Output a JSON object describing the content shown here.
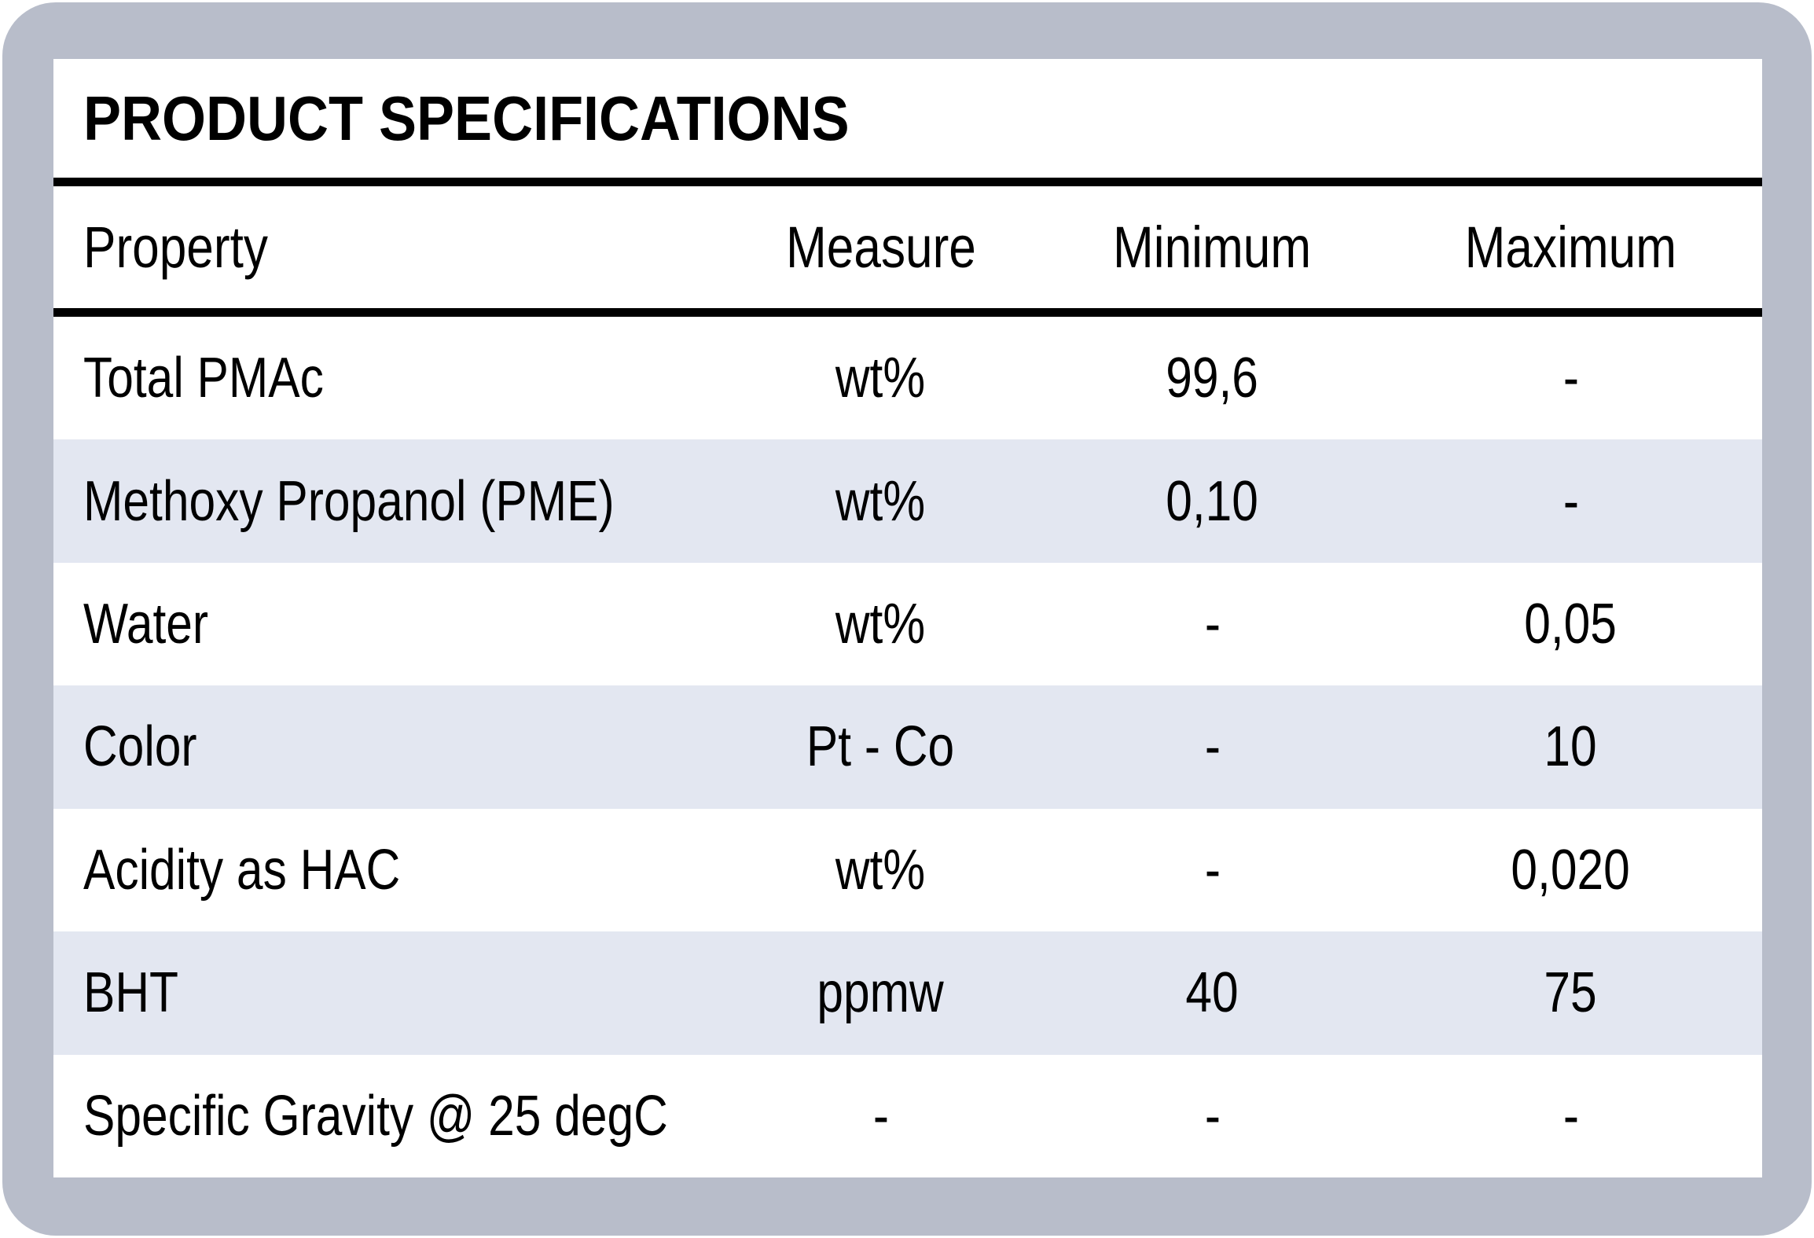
{
  "table": {
    "title": "PRODUCT SPECIFICATIONS",
    "columns": [
      "Property",
      "Measure",
      "Minimum",
      "Maximum"
    ],
    "rows": [
      {
        "property": "Total PMAc",
        "measure": "wt%",
        "minimum": "99,6",
        "maximum": "-"
      },
      {
        "property": "Methoxy Propanol (PME)",
        "measure": "wt%",
        "minimum": "0,10",
        "maximum": "-"
      },
      {
        "property": "Water",
        "measure": "wt%",
        "minimum": "-",
        "maximum": "0,05"
      },
      {
        "property": "Color",
        "measure": "Pt - Co",
        "minimum": "-",
        "maximum": "10"
      },
      {
        "property": "Acidity as HAC",
        "measure": "wt%",
        "minimum": "-",
        "maximum": "0,020"
      },
      {
        "property": "BHT",
        "measure": "ppmw",
        "minimum": "40",
        "maximum": "75"
      },
      {
        "property": "Specific Gravity @ 25 degC",
        "measure": "-",
        "minimum": "-",
        "maximum": "-"
      }
    ]
  },
  "colors": {
    "frame_background": "#b8bdca",
    "card_background": "#ffffff",
    "row_alternate_background": "#e3e7f1",
    "rule_color": "#000000",
    "text_color": "#000000"
  }
}
